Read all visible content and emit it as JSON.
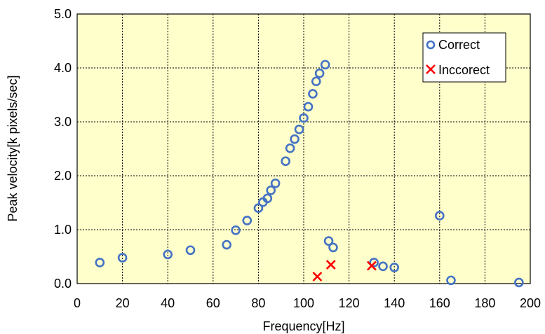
{
  "chart_data": {
    "type": "scatter",
    "xlabel": "Frequency[Hz]",
    "ylabel": "Peak velocity[k pixels/sec]",
    "xlim": [
      0,
      200
    ],
    "ylim": [
      0,
      5
    ],
    "x_ticks": [
      "0",
      "20",
      "40",
      "60",
      "80",
      "100",
      "120",
      "140",
      "160",
      "180",
      "200"
    ],
    "y_ticks": [
      "0.0",
      "1.0",
      "2.0",
      "3.0",
      "4.0",
      "5.0"
    ],
    "grid": true,
    "plot_background": "#FFFFCC",
    "legend_position": "top-right",
    "series": [
      {
        "name": "Correct",
        "marker": "circle",
        "color": "#4472C4",
        "points": [
          [
            10,
            0.39
          ],
          [
            20,
            0.48
          ],
          [
            40,
            0.54
          ],
          [
            50,
            0.62
          ],
          [
            66,
            0.72
          ],
          [
            70,
            0.99
          ],
          [
            75,
            1.17
          ],
          [
            80,
            1.4
          ],
          [
            82,
            1.51
          ],
          [
            84,
            1.58
          ],
          [
            85.5,
            1.73
          ],
          [
            87.5,
            1.86
          ],
          [
            92,
            2.27
          ],
          [
            94,
            2.51
          ],
          [
            96,
            2.68
          ],
          [
            98,
            2.86
          ],
          [
            100,
            3.07
          ],
          [
            102,
            3.28
          ],
          [
            104,
            3.52
          ],
          [
            105.5,
            3.75
          ],
          [
            107,
            3.9
          ],
          [
            109.5,
            4.06
          ],
          [
            111,
            0.79
          ],
          [
            113,
            0.67
          ],
          [
            131,
            0.39
          ],
          [
            135,
            0.32
          ],
          [
            140,
            0.3
          ],
          [
            160,
            1.26
          ],
          [
            165,
            0.06
          ],
          [
            195,
            0.02
          ]
        ]
      },
      {
        "name": "Inccorect",
        "marker": "x",
        "color": "#FF0000",
        "points": [
          [
            106,
            0.13
          ],
          [
            112,
            0.35
          ],
          [
            130,
            0.33
          ]
        ]
      }
    ]
  }
}
